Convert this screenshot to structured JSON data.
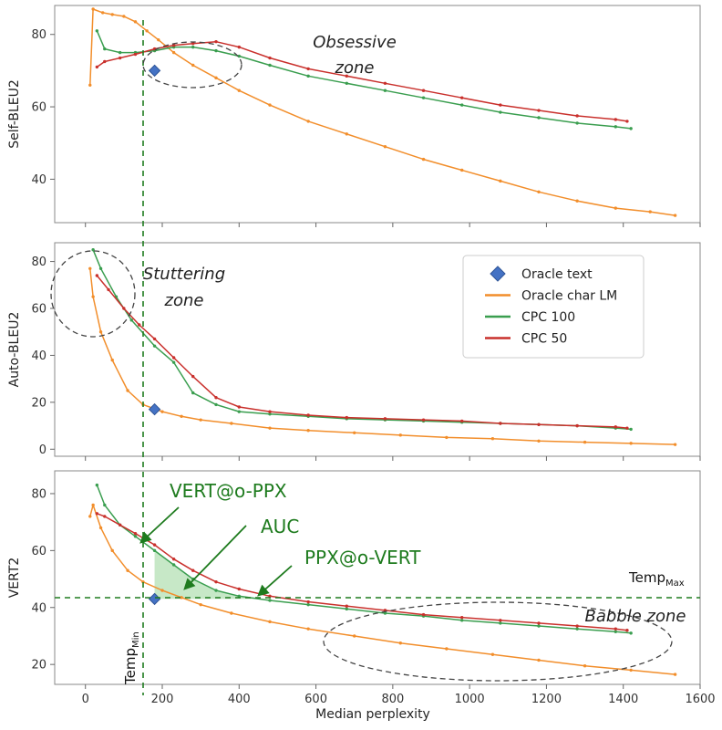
{
  "figure": {
    "x_label": "Median perplexity",
    "x_ticks": [
      0,
      200,
      400,
      600,
      800,
      1000,
      1200,
      1400,
      1600
    ],
    "colors": {
      "oracle_text": "#4472c4",
      "oracle_char_lm": "#f28e2b",
      "cpc100": "#3a9e4f",
      "cpc50": "#c9302c",
      "annotation_green": "#1e7b1e",
      "auc_fill": "#a9dba9"
    }
  },
  "legend": {
    "items": [
      {
        "label": "Oracle text",
        "marker": "diamond",
        "color": "#4472c4"
      },
      {
        "label": "Oracle char LM",
        "marker": "line",
        "color": "#f28e2b"
      },
      {
        "label": "CPC 100",
        "marker": "line",
        "color": "#3a9e4f"
      },
      {
        "label": "CPC 50",
        "marker": "line",
        "color": "#c9302c"
      }
    ]
  },
  "annotations": {
    "obsessive_zone_line1": "Obsessive",
    "obsessive_zone_line2": "zone",
    "stuttering_zone_line1": "Stuttering",
    "stuttering_zone_line2": "zone",
    "babble_zone": "Babble zone",
    "vert_at_o_ppx": "VERT@o-PPX",
    "auc": "AUC",
    "ppx_at_o_vert": "PPX@o-VERT",
    "temp_min_base": "Temp",
    "temp_min_sub": "Min",
    "temp_max_base": "Temp",
    "temp_max_sub": "Max"
  },
  "chart_data": [
    {
      "type": "line",
      "ylabel": "Self-BLEU2",
      "xlabel": "",
      "ylim": [
        28,
        88
      ],
      "xlim": [
        -80,
        1600
      ],
      "y_ticks": [
        40,
        60,
        80
      ],
      "grid": false,
      "series": [
        {
          "name": "Oracle char LM",
          "color": "#f28e2b",
          "x": [
            12,
            20,
            45,
            70,
            100,
            130,
            160,
            190,
            230,
            280,
            340,
            400,
            480,
            580,
            680,
            780,
            880,
            980,
            1080,
            1180,
            1280,
            1380,
            1470,
            1535
          ],
          "y": [
            66,
            87,
            86,
            85.5,
            85,
            83.5,
            81,
            78.5,
            75,
            71.5,
            68,
            64.5,
            60.5,
            56,
            52.5,
            49,
            45.5,
            42.5,
            39.5,
            36.5,
            34,
            32,
            31,
            30
          ]
        },
        {
          "name": "CPC 100",
          "color": "#3a9e4f",
          "x": [
            30,
            50,
            90,
            130,
            180,
            230,
            280,
            340,
            400,
            480,
            580,
            680,
            780,
            880,
            980,
            1080,
            1180,
            1280,
            1380,
            1420
          ],
          "y": [
            81,
            76,
            75,
            75,
            75.5,
            76.5,
            76.5,
            75.5,
            74,
            71.5,
            68.5,
            66.5,
            64.5,
            62.5,
            60.5,
            58.5,
            57,
            55.5,
            54.5,
            54
          ]
        },
        {
          "name": "CPC 50",
          "color": "#c9302c",
          "x": [
            30,
            50,
            90,
            130,
            180,
            230,
            280,
            340,
            400,
            480,
            580,
            680,
            780,
            880,
            980,
            1080,
            1180,
            1280,
            1380,
            1410
          ],
          "y": [
            71,
            72.5,
            73.5,
            74.5,
            76,
            77,
            77.5,
            78,
            76.5,
            73.5,
            70.5,
            68.5,
            66.5,
            64.5,
            62.5,
            60.5,
            59,
            57.5,
            56.5,
            56
          ]
        }
      ],
      "points": [
        {
          "name": "Oracle text",
          "x": 180,
          "y": 70
        }
      ]
    },
    {
      "type": "line",
      "ylabel": "Auto-BLEU2",
      "xlabel": "",
      "ylim": [
        -3,
        88
      ],
      "xlim": [
        -80,
        1600
      ],
      "y_ticks": [
        0,
        20,
        40,
        60,
        80
      ],
      "grid": false,
      "series": [
        {
          "name": "Oracle char LM",
          "color": "#f28e2b",
          "x": [
            12,
            20,
            40,
            70,
            110,
            150,
            200,
            250,
            300,
            380,
            480,
            580,
            700,
            820,
            940,
            1060,
            1180,
            1300,
            1420,
            1535
          ],
          "y": [
            77,
            65,
            50,
            38,
            25,
            19,
            16,
            14,
            12.5,
            11,
            9,
            8,
            7,
            6,
            5,
            4.5,
            3.5,
            3,
            2.5,
            2
          ]
        },
        {
          "name": "CPC 100",
          "color": "#3a9e4f",
          "x": [
            20,
            40,
            80,
            120,
            180,
            230,
            280,
            340,
            400,
            480,
            580,
            680,
            780,
            880,
            980,
            1080,
            1180,
            1280,
            1380,
            1420
          ],
          "y": [
            85,
            77,
            65,
            55,
            44,
            37,
            24,
            19,
            16,
            15,
            14,
            13,
            12.5,
            12,
            11.5,
            11,
            10.5,
            10,
            9,
            8.5
          ]
        },
        {
          "name": "CPC 50",
          "color": "#c9302c",
          "x": [
            30,
            60,
            100,
            140,
            180,
            230,
            280,
            340,
            400,
            480,
            580,
            680,
            780,
            880,
            980,
            1080,
            1180,
            1280,
            1380,
            1410
          ],
          "y": [
            74,
            68,
            60,
            53,
            47,
            39,
            31,
            22,
            18,
            16,
            14.5,
            13.5,
            13,
            12.5,
            12,
            11,
            10.5,
            10,
            9.5,
            9
          ]
        }
      ],
      "points": [
        {
          "name": "Oracle text",
          "x": 180,
          "y": 17
        }
      ]
    },
    {
      "type": "line",
      "ylabel": "VERT2",
      "xlabel": "Median perplexity",
      "ylim": [
        13,
        88
      ],
      "xlim": [
        -80,
        1600
      ],
      "x_ticks": [
        0,
        200,
        400,
        600,
        800,
        1000,
        1200,
        1400,
        1600
      ],
      "y_ticks": [
        20,
        40,
        60,
        80
      ],
      "grid": false,
      "series": [
        {
          "name": "Oracle char LM",
          "color": "#f28e2b",
          "x": [
            12,
            20,
            40,
            70,
            110,
            150,
            200,
            250,
            300,
            380,
            480,
            580,
            700,
            820,
            940,
            1060,
            1180,
            1300,
            1420,
            1535
          ],
          "y": [
            72,
            76,
            68,
            60,
            53,
            49,
            46,
            43.5,
            41,
            38,
            35,
            32.5,
            30,
            27.5,
            25.5,
            23.5,
            21.5,
            19.5,
            18,
            16.5
          ]
        },
        {
          "name": "CPC 100",
          "color": "#3a9e4f",
          "x": [
            30,
            50,
            90,
            130,
            180,
            230,
            280,
            340,
            400,
            480,
            580,
            680,
            780,
            880,
            980,
            1080,
            1180,
            1280,
            1380,
            1420
          ],
          "y": [
            83,
            76,
            69,
            65,
            60,
            55,
            50,
            46,
            44,
            42.5,
            41,
            39.5,
            38,
            37,
            35.5,
            34.5,
            33.5,
            32.5,
            31.5,
            31
          ]
        },
        {
          "name": "CPC 50",
          "color": "#c9302c",
          "x": [
            30,
            50,
            90,
            130,
            180,
            230,
            280,
            340,
            400,
            480,
            580,
            680,
            780,
            880,
            980,
            1080,
            1180,
            1280,
            1380,
            1410
          ],
          "y": [
            73,
            72,
            69,
            66,
            62,
            57,
            53,
            49,
            46.5,
            44,
            42,
            40.5,
            39,
            37.5,
            36.5,
            35.5,
            34.5,
            33.5,
            32.5,
            32
          ]
        }
      ],
      "points": [
        {
          "name": "Oracle text",
          "x": 180,
          "y": 43
        }
      ]
    }
  ]
}
